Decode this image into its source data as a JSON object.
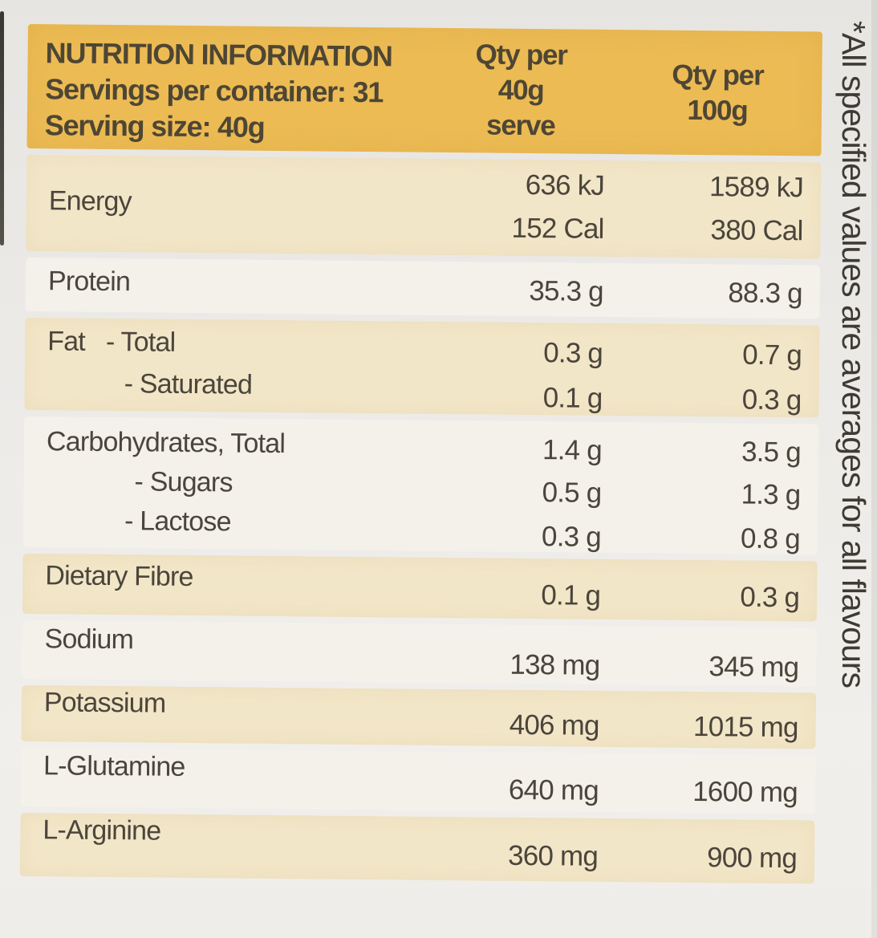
{
  "header": {
    "title": "NUTRITION INFORMATION",
    "servings_per_container": "Servings per container: 31",
    "serving_size": "Serving size: 40g",
    "col_serve_lines": [
      "Qty per",
      "40g",
      "serve"
    ],
    "col_100g_lines": [
      "Qty per",
      "100g"
    ]
  },
  "rows": {
    "energy": {
      "label": "Energy",
      "per_serve": [
        "636 kJ",
        "152 Cal"
      ],
      "per_100g": [
        "1589 kJ",
        "380 Cal"
      ]
    },
    "protein": {
      "label": "Protein",
      "per_serve": "35.3 g",
      "per_100g": "88.3 g"
    },
    "fat": {
      "name": "Fat",
      "lines": [
        {
          "label": "- Total",
          "per_serve": "0.3 g",
          "per_100g": "0.7 g"
        },
        {
          "label": "- Saturated",
          "per_serve": "0.1 g",
          "per_100g": "0.3 g"
        }
      ]
    },
    "carbohydrates": {
      "lines": [
        {
          "label": "Carbohydrates, Total",
          "per_serve": "1.4 g",
          "per_100g": "3.5 g"
        },
        {
          "label": "- Sugars",
          "per_serve": "0.5 g",
          "per_100g": "1.3 g"
        },
        {
          "label": "- Lactose",
          "per_serve": "0.3 g",
          "per_100g": "0.8 g"
        }
      ]
    },
    "dietary_fibre": {
      "label": "Dietary Fibre",
      "per_serve": "0.1 g",
      "per_100g": "0.3 g"
    },
    "sodium": {
      "label": "Sodium",
      "per_serve": "138 mg",
      "per_100g": "345 mg"
    },
    "potassium": {
      "label": "Potassium",
      "per_serve": "406 mg",
      "per_100g": "1015 mg"
    },
    "l_glutamine": {
      "label": "L-Glutamine",
      "per_serve": "640 mg",
      "per_100g": "1600 mg"
    },
    "l_arginine": {
      "label": "L-Arginine",
      "per_serve": "360 mg",
      "per_100g": "900 mg"
    }
  },
  "side_note": "*All specified values are averages for all flavours",
  "colors": {
    "header_gold": "#ecbb54",
    "band_cream": "#f2e6c8",
    "band_white": "#f4f1eb",
    "text": "#4b453b"
  }
}
